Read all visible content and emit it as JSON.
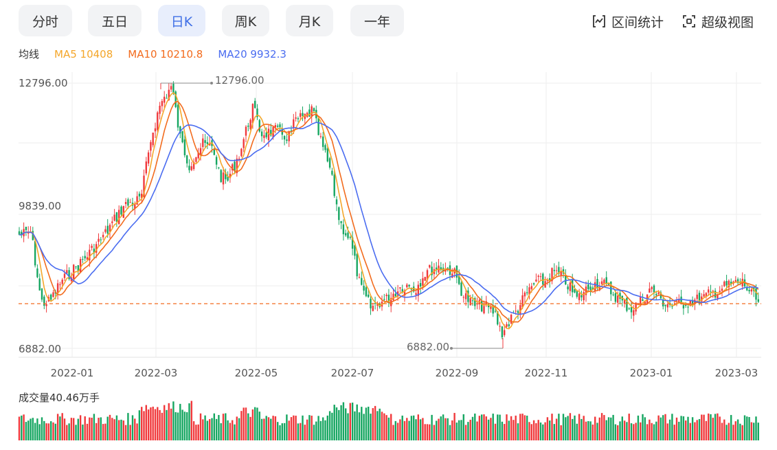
{
  "tabs": [
    {
      "label": "分时",
      "active": false
    },
    {
      "label": "五日",
      "active": false
    },
    {
      "label": "日K",
      "active": true
    },
    {
      "label": "周K",
      "active": false
    },
    {
      "label": "月K",
      "active": false
    },
    {
      "label": "一年",
      "active": false
    }
  ],
  "tools": {
    "interval_label": "区间统计",
    "interval_icon": "interval-stat-icon",
    "super_label": "超级视图",
    "super_icon": "super-view-icon"
  },
  "ma": {
    "title": "均线",
    "ma5": "MA5 10408",
    "ma10": "MA10 10210.8",
    "ma20": "MA20 9932.3"
  },
  "colors": {
    "up": "#f0383b",
    "down": "#16a661",
    "ma5": "#f4a62a",
    "ma10": "#f26b1d",
    "ma20": "#4a6cf0",
    "active_tab": "#3f6fe6",
    "last_price_line": "#f26b1d"
  },
  "volume": {
    "label": "成交量40.46万手"
  },
  "chart_data": {
    "type": "candlestick",
    "y_axis_labels": [
      "12796.00",
      "9839.00",
      "6882.00"
    ],
    "ylim": [
      6882.0,
      12796.0
    ],
    "x_axis_labels": [
      "2022-01",
      "2022-03",
      "2022-05",
      "2022-07",
      "2022-09",
      "2022-11",
      "2023-01",
      "2023-03"
    ],
    "high_marker": "12796.00",
    "low_marker": "6882.00",
    "ma5_last": 10408,
    "ma10_last": 10210.8,
    "ma20_last": 9932.3,
    "volume_last": "40.46万手",
    "grid": true
  }
}
